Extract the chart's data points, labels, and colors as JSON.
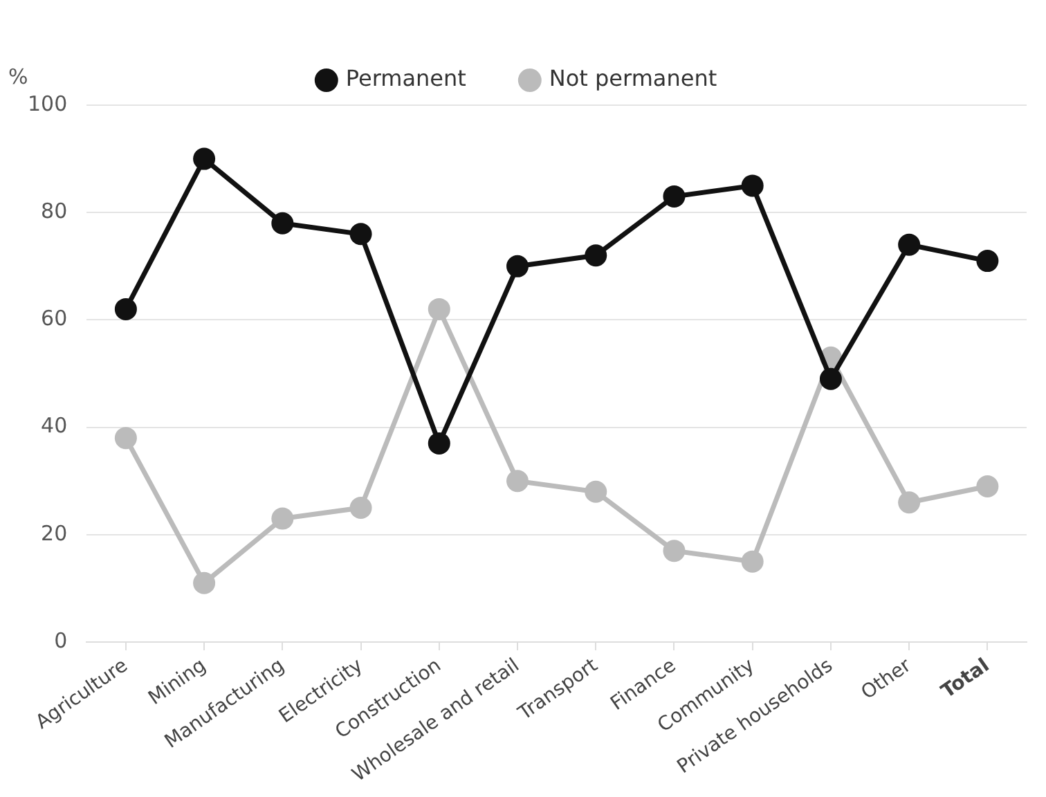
{
  "chart_data": {
    "type": "line",
    "ylabel": "%",
    "categories": [
      "Agriculture",
      "Mining",
      "Manufacturing",
      "Electricity",
      "Construction",
      "Wholesale and retail",
      "Transport",
      "Finance",
      "Community",
      "Private households",
      "Other",
      "Total"
    ],
    "series": [
      {
        "name": "Permanent",
        "color": "#111111",
        "values": [
          62,
          90,
          78,
          76,
          37,
          70,
          72,
          83,
          85,
          49,
          74,
          71
        ]
      },
      {
        "name": "Not permanent",
        "color": "#bbbbbb",
        "values": [
          38,
          11,
          23,
          25,
          62,
          30,
          28,
          17,
          15,
          53,
          26,
          29
        ]
      }
    ],
    "ylim": [
      0,
      100
    ],
    "yticks": [
      0,
      20,
      40,
      60,
      80,
      100
    ],
    "grid": "y",
    "legend": "top",
    "marker": "circle",
    "line_style": "solid"
  }
}
